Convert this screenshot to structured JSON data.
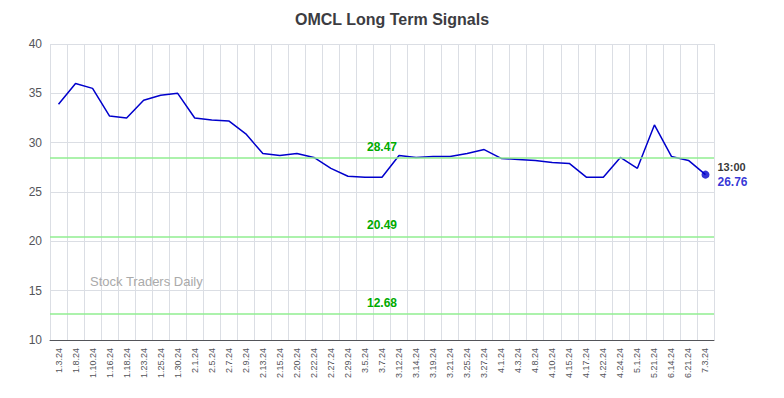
{
  "chart_data": {
    "type": "line",
    "title": "OMCL Long Term Signals",
    "categories": [
      "1.3.24",
      "1.8.24",
      "1.10.24",
      "1.16.24",
      "1.18.24",
      "1.23.24",
      "1.25.24",
      "1.30.24",
      "2.1.24",
      "2.5.24",
      "2.7.24",
      "2.9.24",
      "2.13.24",
      "2.15.24",
      "2.20.24",
      "2.22.24",
      "2.27.24",
      "2.29.24",
      "3.5.24",
      "3.7.24",
      "3.12.24",
      "3.14.24",
      "3.19.24",
      "3.21.24",
      "3.25.24",
      "3.27.24",
      "4.1.24",
      "4.3.24",
      "4.8.24",
      "4.10.24",
      "4.15.24",
      "4.17.24",
      "4.22.24",
      "4.24.24",
      "5.1.24",
      "5.21.24",
      "6.14.24",
      "6.21.24",
      "7.3.24"
    ],
    "values": [
      33.9,
      36.0,
      35.5,
      32.7,
      32.5,
      34.3,
      34.8,
      35.0,
      32.5,
      32.3,
      32.2,
      30.9,
      28.9,
      28.7,
      28.9,
      28.5,
      27.4,
      26.6,
      26.5,
      26.5,
      28.7,
      28.5,
      28.6,
      28.6,
      28.9,
      29.3,
      28.4,
      28.3,
      28.2,
      28.0,
      27.9,
      26.5,
      26.5,
      28.5,
      27.4,
      31.8,
      28.6,
      28.2,
      26.76
    ],
    "color": "#0000cc",
    "hlines": [
      {
        "y": 28.47,
        "label": "28.47",
        "color": "#90ee90",
        "label_color": "#00aa00"
      },
      {
        "y": 20.49,
        "label": "20.49",
        "color": "#90ee90",
        "label_color": "#00aa00"
      },
      {
        "y": 12.68,
        "label": "12.68",
        "color": "#90ee90",
        "label_color": "#00aa00"
      }
    ],
    "annotations": [
      "13:00",
      "26.76"
    ],
    "watermark": "Stock Traders Daily",
    "ylim": [
      10,
      40
    ],
    "yticks": [
      10,
      15,
      20,
      25,
      30,
      35,
      40
    ],
    "grid": true
  }
}
